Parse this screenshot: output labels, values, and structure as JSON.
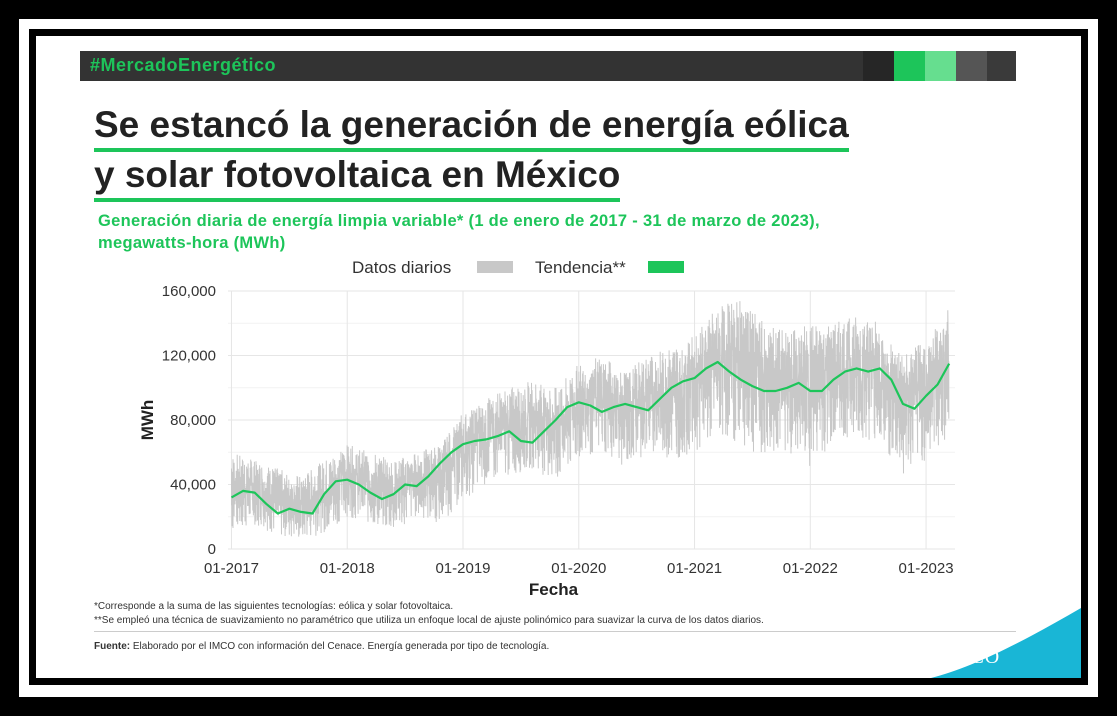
{
  "banner": {
    "hashtag": "#MercadoEnergético",
    "squares": [
      "#262626",
      "#1dc55a",
      "#66de8f",
      "#555555",
      "#3a3a3a"
    ]
  },
  "title": {
    "line1": "Se estancó la generación de energía eólica",
    "line2": "y solar fotovoltaica en México"
  },
  "subtitle": {
    "line1": "Generación diaria de energía limpia variable* (1 de enero de 2017 - 31 de marzo de 2023),",
    "line2": "megawatts-hora (MWh)"
  },
  "colors": {
    "accent": "#1dc55a",
    "daily": "#c8c8c8",
    "corner": "#19b6d6"
  },
  "chart_data": {
    "type": "line",
    "xlabel": "Fecha",
    "ylabel": "MWh",
    "ylim": [
      0,
      160000
    ],
    "yticks": [
      0,
      40000,
      80000,
      120000,
      160000
    ],
    "ytick_labels": [
      "0",
      "40,000",
      "80,000",
      "120,000",
      "160,000"
    ],
    "xticks": [
      2017.0,
      2018.0,
      2019.0,
      2020.0,
      2021.0,
      2022.0,
      2023.0
    ],
    "xtick_labels": [
      "01-2017",
      "01-2018",
      "01-2019",
      "01-2020",
      "01-2021",
      "01-2022",
      "01-2023"
    ],
    "xlim": [
      2016.97,
      2023.25
    ],
    "grid": true,
    "legend_position": "top-center",
    "series": [
      {
        "name": "Datos diarios",
        "kind": "band",
        "color": "#c8c8c8",
        "x": [
          2017.0,
          2017.2,
          2017.4,
          2017.6,
          2017.8,
          2018.0,
          2018.2,
          2018.4,
          2018.6,
          2018.8,
          2019.0,
          2019.2,
          2019.4,
          2019.6,
          2019.8,
          2020.0,
          2020.2,
          2020.4,
          2020.6,
          2020.8,
          2021.0,
          2021.2,
          2021.4,
          2021.6,
          2021.8,
          2022.0,
          2022.2,
          2022.4,
          2022.6,
          2022.8,
          2023.0,
          2023.2
        ],
        "low": [
          10000,
          15000,
          8000,
          5000,
          10000,
          20000,
          15000,
          10000,
          20000,
          15000,
          30000,
          40000,
          45000,
          50000,
          40000,
          55000,
          60000,
          50000,
          60000,
          55000,
          60000,
          70000,
          65000,
          55000,
          60000,
          50000,
          65000,
          70000,
          65000,
          45000,
          55000,
          70000
        ],
        "high": [
          60000,
          55000,
          50000,
          45000,
          55000,
          65000,
          60000,
          55000,
          60000,
          65000,
          85000,
          95000,
          100000,
          105000,
          100000,
          115000,
          120000,
          110000,
          120000,
          125000,
          135000,
          150000,
          155000,
          140000,
          135000,
          140000,
          140000,
          145000,
          140000,
          120000,
          130000,
          150000
        ]
      },
      {
        "name": "Tendencia**",
        "kind": "line",
        "color": "#1dc55a",
        "x": [
          2017.0,
          2017.1,
          2017.2,
          2017.3,
          2017.4,
          2017.5,
          2017.6,
          2017.7,
          2017.8,
          2017.9,
          2018.0,
          2018.1,
          2018.2,
          2018.3,
          2018.4,
          2018.5,
          2018.6,
          2018.7,
          2018.8,
          2018.9,
          2019.0,
          2019.1,
          2019.2,
          2019.3,
          2019.4,
          2019.5,
          2019.6,
          2019.7,
          2019.8,
          2019.9,
          2020.0,
          2020.1,
          2020.2,
          2020.3,
          2020.4,
          2020.5,
          2020.6,
          2020.7,
          2020.8,
          2020.9,
          2021.0,
          2021.1,
          2021.2,
          2021.3,
          2021.4,
          2021.5,
          2021.6,
          2021.7,
          2021.8,
          2021.9,
          2022.0,
          2022.1,
          2022.2,
          2022.3,
          2022.4,
          2022.5,
          2022.6,
          2022.7,
          2022.8,
          2022.9,
          2023.0,
          2023.1,
          2023.2
        ],
        "y": [
          32000,
          36000,
          35000,
          28000,
          22000,
          25000,
          23000,
          22000,
          34000,
          42000,
          43000,
          40000,
          35000,
          31000,
          34000,
          40000,
          39000,
          45000,
          53000,
          60000,
          65000,
          67000,
          68000,
          70000,
          73000,
          67000,
          66000,
          73000,
          80000,
          88000,
          91000,
          89000,
          85000,
          88000,
          90000,
          88000,
          86000,
          93000,
          100000,
          104000,
          106000,
          112000,
          116000,
          110000,
          105000,
          101000,
          98000,
          98000,
          100000,
          103000,
          98000,
          98000,
          105000,
          110000,
          112000,
          110000,
          112000,
          105000,
          90000,
          87000,
          95000,
          102000,
          115000
        ]
      }
    ]
  },
  "notes": {
    "line1": "*Corresponde a la suma de las siguientes tecnologías: eólica y solar fotovoltaica.",
    "line2": "**Se empleó una técnica de suavizamiento no paramétrico que utiliza un enfoque local de ajuste polinómico para suavizar la curva de los datos diarios."
  },
  "source": {
    "label": "Fuente:",
    "text": " Elaborado por el IMCO con información del Cenace. Energía generada por tipo de tecnología."
  },
  "logo": {
    "text": "IMCO",
    "icon": "imco-logo"
  }
}
